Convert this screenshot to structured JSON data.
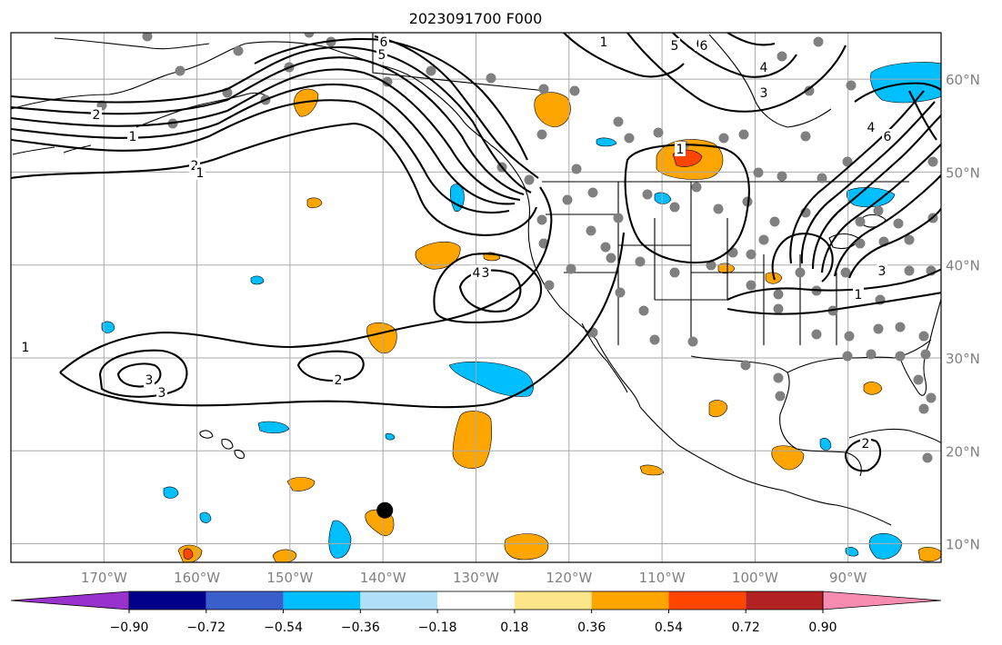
{
  "title": "2023091700 F000",
  "map": {
    "extent": {
      "lon_min": -180,
      "lon_max": -80,
      "lat_min": 8,
      "lat_max": 65
    },
    "lon_ticks": [
      -170,
      -160,
      -150,
      -140,
      -130,
      -120,
      -110,
      -100,
      -90
    ],
    "lon_tick_labels": [
      "170°W",
      "160°W",
      "150°W",
      "140°W",
      "130°W",
      "120°W",
      "110°W",
      "100°W",
      "90°W"
    ],
    "lat_ticks": [
      10,
      20,
      30,
      40,
      50,
      60
    ],
    "lat_tick_labels": [
      "10°N",
      "20°N",
      "30°N",
      "40°N",
      "50°N",
      "60°N"
    ],
    "grid": true,
    "tick_label_color": "#808080"
  },
  "contour_labels": [
    "6",
    "5",
    "6",
    "2",
    "1",
    "1",
    "5",
    "6",
    "4",
    "3",
    "2",
    "1",
    "6",
    "4",
    "1",
    "3",
    "4",
    "3",
    "3",
    "1",
    "2",
    "3",
    "2",
    "1"
  ],
  "colorbar": {
    "ticks": [
      "−0.90",
      "−0.72",
      "−0.54",
      "−0.36",
      "−0.18",
      "0.18",
      "0.36",
      "0.54",
      "0.72",
      "0.90"
    ],
    "colors": [
      "#9932cc",
      "#00008b",
      "#3a5fcd",
      "#00bfff",
      "#b0e0f8",
      "#ffffff",
      "#fde68a",
      "#ffa500",
      "#ff4500",
      "#b22222",
      "#f88cb0"
    ]
  },
  "marker": {
    "lon": -139.8,
    "lat": 13.6,
    "color": "#000000"
  },
  "station_color": "#808080"
}
